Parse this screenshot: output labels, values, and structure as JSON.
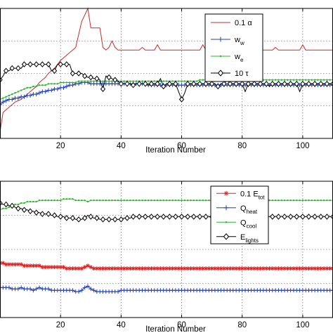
{
  "chart_data": [
    {
      "type": "line",
      "xlabel": "Iteration Number",
      "ylabel": "",
      "xlim": [
        0,
        110
      ],
      "ylim": [
        0,
        1.0
      ],
      "xticks": [
        20,
        40,
        60,
        80,
        100
      ],
      "grid": true,
      "legend_placement": "top-right",
      "series": [
        {
          "name": "0.1 α",
          "legend_label": [
            "0.1 ",
            "α"
          ],
          "color": "#d62728",
          "marker": "none",
          "y": [
            0.05,
            0.2,
            0.22,
            0.24,
            0.26,
            0.28,
            0.29,
            0.3,
            0.32,
            0.34,
            0.36,
            0.38,
            0.4,
            0.43,
            0.45,
            0.47,
            0.5,
            0.52,
            0.54,
            0.57,
            0.6,
            0.62,
            0.64,
            0.66,
            0.68,
            0.7,
            0.8,
            0.9,
            0.95,
            1.0,
            0.85,
            0.85,
            0.85,
            0.85,
            0.7,
            0.68,
            0.7,
            0.75,
            0.7,
            0.68,
            0.68,
            0.68,
            0.68,
            0.68,
            0.68,
            0.68,
            0.68,
            0.7,
            0.68,
            0.68,
            0.68,
            0.68,
            0.72,
            0.68,
            0.68,
            0.68,
            0.68,
            0.68,
            0.68,
            0.68,
            0.68,
            0.68,
            0.68,
            0.68,
            0.68,
            0.68,
            0.68,
            0.72,
            0.68,
            0.68,
            0.68,
            0.68,
            0.72,
            0.68,
            0.68,
            0.68,
            0.68,
            0.72,
            0.68,
            0.68,
            0.68,
            0.68,
            0.68,
            0.68,
            0.68,
            0.68,
            0.68,
            0.68,
            0.68,
            0.68,
            0.68,
            0.7,
            0.68,
            0.68,
            0.68,
            0.68,
            0.68,
            0.68,
            0.68,
            0.68,
            0.72,
            0.68,
            0.68,
            0.68,
            0.68,
            0.68,
            0.68,
            0.68,
            0.68,
            0.68,
            0.68
          ]
        },
        {
          "name": "w_w",
          "legend_label": [
            "w",
            "w"
          ],
          "color": "#1f3fbf",
          "marker": "plus",
          "y": [
            0.26,
            0.28,
            0.29,
            0.3,
            0.3,
            0.31,
            0.31,
            0.32,
            0.32,
            0.33,
            0.33,
            0.34,
            0.34,
            0.35,
            0.36,
            0.36,
            0.37,
            0.37,
            0.38,
            0.38,
            0.39,
            0.39,
            0.4,
            0.41,
            0.41,
            0.42,
            0.42,
            0.43,
            0.43,
            0.43,
            0.42,
            0.42,
            0.42,
            0.42,
            0.42,
            0.42,
            0.42,
            0.42,
            0.42,
            0.42,
            0.42,
            0.42,
            0.42,
            0.42,
            0.42,
            0.42,
            0.42,
            0.42,
            0.42,
            0.41,
            0.41,
            0.41,
            0.41,
            0.41,
            0.41,
            0.41,
            0.41,
            0.41,
            0.41,
            0.41,
            0.41,
            0.41,
            0.41,
            0.41,
            0.41,
            0.41,
            0.41,
            0.41,
            0.41,
            0.41,
            0.41,
            0.41,
            0.41,
            0.41,
            0.41,
            0.41,
            0.41,
            0.41,
            0.41,
            0.41,
            0.41,
            0.41,
            0.41,
            0.41,
            0.41,
            0.41,
            0.41,
            0.41,
            0.41,
            0.41,
            0.41,
            0.41,
            0.41,
            0.41,
            0.41,
            0.41,
            0.41,
            0.41,
            0.41,
            0.41,
            0.41,
            0.41,
            0.41,
            0.41,
            0.41,
            0.41,
            0.41,
            0.41,
            0.41,
            0.41,
            0.41
          ]
        },
        {
          "name": "w_e",
          "legend_label": [
            "w",
            "e"
          ],
          "color": "#22bb22",
          "marker": "dot",
          "y": [
            0.3,
            0.31,
            0.32,
            0.33,
            0.34,
            0.35,
            0.36,
            0.37,
            0.38,
            0.39,
            0.39,
            0.4,
            0.4,
            0.41,
            0.41,
            0.41,
            0.42,
            0.42,
            0.42,
            0.42,
            0.43,
            0.43,
            0.43,
            0.43,
            0.43,
            0.43,
            0.44,
            0.44,
            0.44,
            0.44,
            0.44,
            0.44,
            0.44,
            0.44,
            0.44,
            0.44,
            0.44,
            0.44,
            0.44,
            0.44,
            0.44,
            0.44,
            0.44,
            0.44,
            0.44,
            0.44,
            0.44,
            0.44,
            0.44,
            0.44,
            0.44,
            0.44,
            0.44,
            0.44,
            0.44,
            0.44,
            0.44,
            0.44,
            0.44,
            0.44,
            0.44,
            0.44,
            0.44,
            0.44,
            0.44,
            0.44,
            0.45,
            0.45,
            0.45,
            0.45,
            0.45,
            0.45,
            0.45,
            0.45,
            0.45,
            0.45,
            0.45,
            0.45,
            0.45,
            0.45,
            0.45,
            0.45,
            0.45,
            0.45,
            0.45,
            0.45,
            0.45,
            0.45,
            0.45,
            0.45,
            0.45,
            0.45,
            0.45,
            0.45,
            0.45,
            0.45,
            0.45,
            0.45,
            0.45,
            0.45,
            0.45,
            0.45,
            0.45,
            0.45,
            0.45,
            0.45,
            0.45,
            0.45,
            0.45,
            0.45,
            0.45
          ]
        },
        {
          "name": "10 τ",
          "legend_label": [
            "10 ",
            "τ"
          ],
          "color": "#000000",
          "marker": "diamond",
          "y": [
            0.45,
            0.48,
            0.52,
            0.52,
            0.54,
            0.54,
            0.54,
            0.54,
            0.57,
            0.57,
            0.57,
            0.57,
            0.57,
            0.57,
            0.57,
            0.57,
            0.57,
            0.52,
            0.52,
            0.57,
            0.57,
            0.57,
            0.57,
            0.57,
            0.5,
            0.5,
            0.5,
            0.5,
            0.48,
            0.47,
            0.47,
            0.46,
            0.46,
            0.45,
            0.38,
            0.48,
            0.47,
            0.46,
            0.45,
            0.44,
            0.42,
            0.42,
            0.42,
            0.42,
            0.41,
            0.42,
            0.42,
            0.42,
            0.42,
            0.41,
            0.42,
            0.42,
            0.42,
            0.46,
            0.4,
            0.42,
            0.42,
            0.42,
            0.42,
            0.36,
            0.3,
            0.35,
            0.42,
            0.42,
            0.42,
            0.42,
            0.42,
            0.42,
            0.42,
            0.42,
            0.42,
            0.42,
            0.4,
            0.42,
            0.42,
            0.45,
            0.42,
            0.42,
            0.42,
            0.42,
            0.42,
            0.36,
            0.42,
            0.42,
            0.42,
            0.42,
            0.42,
            0.42,
            0.42,
            0.4,
            0.42,
            0.42,
            0.42,
            0.42,
            0.42,
            0.42,
            0.42,
            0.42,
            0.42,
            0.36,
            0.42,
            0.42,
            0.42,
            0.42,
            0.42,
            0.42,
            0.42,
            0.42,
            0.42,
            0.42,
            0.42
          ]
        }
      ]
    },
    {
      "type": "line",
      "xlabel": "Iteration Number",
      "ylabel": "",
      "xlim": [
        0,
        110
      ],
      "ylim": [
        0,
        1.0
      ],
      "xticks": [
        20,
        40,
        60,
        80,
        100
      ],
      "grid": true,
      "legend_placement": "top-right",
      "series": [
        {
          "name": "0.1 E_tot",
          "legend_label": [
            "0.1 E",
            "tot"
          ],
          "color": "#d62728",
          "marker": "star",
          "y": [
            0.4,
            0.4,
            0.39,
            0.39,
            0.39,
            0.39,
            0.39,
            0.39,
            0.38,
            0.38,
            0.38,
            0.38,
            0.38,
            0.38,
            0.37,
            0.37,
            0.37,
            0.37,
            0.37,
            0.37,
            0.37,
            0.37,
            0.36,
            0.36,
            0.36,
            0.36,
            0.36,
            0.36,
            0.37,
            0.38,
            0.37,
            0.36,
            0.36,
            0.36,
            0.36,
            0.36,
            0.36,
            0.36,
            0.36,
            0.36,
            0.36,
            0.36,
            0.36,
            0.36,
            0.36,
            0.36,
            0.36,
            0.36,
            0.36,
            0.36,
            0.36,
            0.36,
            0.36,
            0.36,
            0.36,
            0.36,
            0.36,
            0.36,
            0.36,
            0.36,
            0.36,
            0.36,
            0.36,
            0.36,
            0.36,
            0.36,
            0.36,
            0.36,
            0.36,
            0.36,
            0.36,
            0.36,
            0.36,
            0.36,
            0.36,
            0.36,
            0.36,
            0.36,
            0.36,
            0.36,
            0.36,
            0.36,
            0.36,
            0.36,
            0.36,
            0.36,
            0.36,
            0.36,
            0.36,
            0.36,
            0.36,
            0.36,
            0.36,
            0.36,
            0.36,
            0.36,
            0.36,
            0.36,
            0.36,
            0.36,
            0.36,
            0.36,
            0.36,
            0.36,
            0.36,
            0.36,
            0.36,
            0.36,
            0.36,
            0.36,
            0.36
          ]
        },
        {
          "name": "Q_heat",
          "legend_label": [
            "Q",
            "heat"
          ],
          "color": "#1f3fbf",
          "marker": "plus",
          "y": [
            0.22,
            0.22,
            0.22,
            0.22,
            0.21,
            0.21,
            0.21,
            0.22,
            0.21,
            0.21,
            0.21,
            0.2,
            0.21,
            0.22,
            0.21,
            0.21,
            0.21,
            0.2,
            0.2,
            0.2,
            0.2,
            0.2,
            0.2,
            0.2,
            0.2,
            0.19,
            0.19,
            0.2,
            0.22,
            0.23,
            0.21,
            0.2,
            0.19,
            0.19,
            0.19,
            0.19,
            0.19,
            0.19,
            0.19,
            0.19,
            0.2,
            0.2,
            0.2,
            0.2,
            0.2,
            0.2,
            0.2,
            0.2,
            0.2,
            0.2,
            0.2,
            0.2,
            0.2,
            0.2,
            0.2,
            0.2,
            0.2,
            0.2,
            0.2,
            0.2,
            0.2,
            0.2,
            0.2,
            0.2,
            0.2,
            0.2,
            0.2,
            0.2,
            0.2,
            0.2,
            0.2,
            0.2,
            0.2,
            0.2,
            0.2,
            0.2,
            0.2,
            0.2,
            0.2,
            0.2,
            0.2,
            0.2,
            0.2,
            0.2,
            0.2,
            0.2,
            0.2,
            0.2,
            0.2,
            0.2,
            0.2,
            0.2,
            0.2,
            0.2,
            0.2,
            0.2,
            0.2,
            0.2,
            0.2,
            0.2,
            0.2,
            0.2,
            0.2,
            0.2,
            0.2,
            0.2,
            0.2,
            0.2,
            0.2,
            0.2,
            0.2
          ]
        },
        {
          "name": "Q_cool",
          "legend_label": [
            "Q",
            "cool"
          ],
          "color": "#22bb22",
          "marker": "dot",
          "y": [
            0.79,
            0.8,
            0.8,
            0.81,
            0.82,
            0.83,
            0.83,
            0.84,
            0.84,
            0.85,
            0.85,
            0.85,
            0.85,
            0.86,
            0.86,
            0.86,
            0.86,
            0.86,
            0.86,
            0.86,
            0.86,
            0.87,
            0.87,
            0.87,
            0.87,
            0.86,
            0.86,
            0.86,
            0.86,
            0.85,
            0.86,
            0.86,
            0.86,
            0.86,
            0.86,
            0.86,
            0.86,
            0.86,
            0.86,
            0.86,
            0.86,
            0.86,
            0.86,
            0.86,
            0.86,
            0.86,
            0.86,
            0.86,
            0.86,
            0.86,
            0.86,
            0.86,
            0.86,
            0.86,
            0.86,
            0.86,
            0.86,
            0.86,
            0.86,
            0.86,
            0.86,
            0.86,
            0.86,
            0.86,
            0.86,
            0.86,
            0.86,
            0.86,
            0.86,
            0.86,
            0.86,
            0.86,
            0.86,
            0.86,
            0.86,
            0.86,
            0.86,
            0.86,
            0.86,
            0.86,
            0.86,
            0.86,
            0.86,
            0.86,
            0.86,
            0.86,
            0.86,
            0.86,
            0.86,
            0.86,
            0.86,
            0.86,
            0.86,
            0.86,
            0.86,
            0.86,
            0.86,
            0.86,
            0.86,
            0.86,
            0.86,
            0.86,
            0.86,
            0.86,
            0.86,
            0.86,
            0.86,
            0.86,
            0.86,
            0.86,
            0.86
          ]
        },
        {
          "name": "E_lights",
          "legend_label": [
            "E",
            "lights"
          ],
          "color": "#000000",
          "marker": "diamond",
          "y": [
            0.84,
            0.83,
            0.83,
            0.82,
            0.82,
            0.81,
            0.8,
            0.8,
            0.79,
            0.79,
            0.78,
            0.78,
            0.77,
            0.77,
            0.76,
            0.76,
            0.76,
            0.75,
            0.75,
            0.74,
            0.74,
            0.74,
            0.73,
            0.73,
            0.73,
            0.72,
            0.72,
            0.72,
            0.73,
            0.75,
            0.74,
            0.73,
            0.73,
            0.72,
            0.72,
            0.72,
            0.72,
            0.72,
            0.72,
            0.72,
            0.72,
            0.73,
            0.73,
            0.73,
            0.74,
            0.74,
            0.74,
            0.74,
            0.74,
            0.74,
            0.74,
            0.74,
            0.74,
            0.74,
            0.74,
            0.74,
            0.74,
            0.74,
            0.74,
            0.74,
            0.74,
            0.74,
            0.74,
            0.74,
            0.74,
            0.74,
            0.74,
            0.74,
            0.74,
            0.74,
            0.74,
            0.74,
            0.74,
            0.74,
            0.74,
            0.74,
            0.74,
            0.74,
            0.74,
            0.74,
            0.74,
            0.74,
            0.74,
            0.74,
            0.74,
            0.74,
            0.74,
            0.74,
            0.74,
            0.74,
            0.74,
            0.74,
            0.74,
            0.74,
            0.74,
            0.74,
            0.74,
            0.74,
            0.74,
            0.74,
            0.74,
            0.74,
            0.74,
            0.74,
            0.74,
            0.74,
            0.74,
            0.74,
            0.74,
            0.74,
            0.74
          ]
        }
      ]
    }
  ]
}
